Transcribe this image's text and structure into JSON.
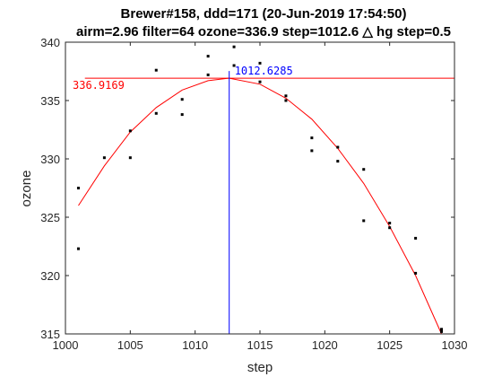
{
  "chart_data": {
    "type": "scatter",
    "title": "Brewer#158, ddd=171 (20-Jun-2019 17:54:50)",
    "subtitle": "airm=2.96  filter=64 ozone=336.9  step=1012.6 △ hg step=0.5",
    "xlabel": "step",
    "ylabel": "ozone",
    "xlim": [
      1000,
      1030
    ],
    "ylim": [
      315,
      340
    ],
    "xticks": [
      1000,
      1005,
      1010,
      1015,
      1020,
      1025,
      1030
    ],
    "yticks": [
      315,
      320,
      325,
      330,
      335,
      340
    ],
    "grid": false,
    "points": [
      {
        "x": 1001,
        "y": 327.5
      },
      {
        "x": 1001,
        "y": 322.3
      },
      {
        "x": 1003,
        "y": 330.1
      },
      {
        "x": 1005,
        "y": 332.4
      },
      {
        "x": 1005,
        "y": 330.1
      },
      {
        "x": 1007,
        "y": 337.6
      },
      {
        "x": 1007,
        "y": 333.9
      },
      {
        "x": 1009,
        "y": 335.1
      },
      {
        "x": 1009,
        "y": 333.8
      },
      {
        "x": 1011,
        "y": 338.8
      },
      {
        "x": 1011,
        "y": 337.2
      },
      {
        "x": 1013,
        "y": 339.6
      },
      {
        "x": 1013,
        "y": 338.0
      },
      {
        "x": 1015,
        "y": 338.2
      },
      {
        "x": 1015,
        "y": 336.6
      },
      {
        "x": 1017,
        "y": 335.4
      },
      {
        "x": 1017,
        "y": 335.0
      },
      {
        "x": 1019,
        "y": 331.8
      },
      {
        "x": 1019,
        "y": 330.7
      },
      {
        "x": 1021,
        "y": 331.0
      },
      {
        "x": 1021,
        "y": 329.8
      },
      {
        "x": 1023,
        "y": 329.1
      },
      {
        "x": 1023,
        "y": 324.7
      },
      {
        "x": 1025,
        "y": 324.5
      },
      {
        "x": 1025,
        "y": 324.1
      },
      {
        "x": 1027,
        "y": 323.2
      },
      {
        "x": 1027,
        "y": 320.2
      },
      {
        "x": 1029,
        "y": 315.4
      },
      {
        "x": 1029,
        "y": 315.2
      }
    ],
    "fit_curve": {
      "x": [
        1001,
        1003,
        1005,
        1007,
        1009,
        1011,
        1012.6285,
        1015,
        1017,
        1019,
        1021,
        1023,
        1025,
        1027,
        1029
      ],
      "y": [
        326.0,
        329.4,
        332.3,
        334.4,
        335.9,
        336.7,
        336.9169,
        336.4,
        335.2,
        333.4,
        330.9,
        327.9,
        324.2,
        320.0,
        315.0
      ]
    },
    "max_x_label": "1012.6285",
    "max_y_label": "336.9169",
    "max_x": 1012.6285,
    "max_y": 336.9169,
    "colors": {
      "points": "#000000",
      "fit": "#ff0000",
      "hline": "#ff0000",
      "vline": "#0000ff",
      "axes": "#262626"
    }
  }
}
